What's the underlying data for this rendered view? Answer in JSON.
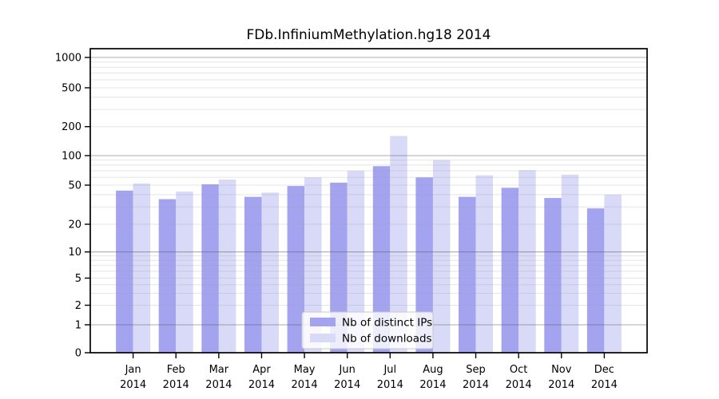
{
  "title": "FDb.InfiniumMethylation.hg18 2014",
  "colors": {
    "bar_ips": "#a3a3f0",
    "bar_downloads": "#d9d9f8",
    "grid_major": "#b0b0b0",
    "grid_minor": "#e6e6e6",
    "axis": "#000000",
    "legend_border": "#c8c8c8",
    "background": "#ffffff"
  },
  "chart_data": {
    "type": "bar",
    "title": "FDb.InfiniumMethylation.hg18 2014",
    "categories": [
      "Jan 2014",
      "Feb 2014",
      "Mar 2014",
      "Apr 2014",
      "May 2014",
      "Jun 2014",
      "Jul 2014",
      "Aug 2014",
      "Sep 2014",
      "Oct 2014",
      "Nov 2014",
      "Dec 2014"
    ],
    "series": [
      {
        "name": "Nb of distinct IPs",
        "color": "#a3a3f0",
        "values": [
          44,
          36,
          51,
          38,
          49,
          53,
          78,
          60,
          38,
          47,
          37,
          29
        ]
      },
      {
        "name": "Nb of downloads",
        "color": "#d9d9f8",
        "values": [
          52,
          43,
          57,
          42,
          60,
          70,
          160,
          90,
          63,
          71,
          64,
          40
        ]
      }
    ],
    "xlabel": "",
    "ylabel": "",
    "yscale": "symlog",
    "yticks": [
      0,
      1,
      2,
      5,
      10,
      20,
      50,
      100,
      200,
      500,
      1000
    ],
    "ylim": [
      0,
      1200
    ],
    "grid": true,
    "legend_position": "inside-bottom-center"
  }
}
